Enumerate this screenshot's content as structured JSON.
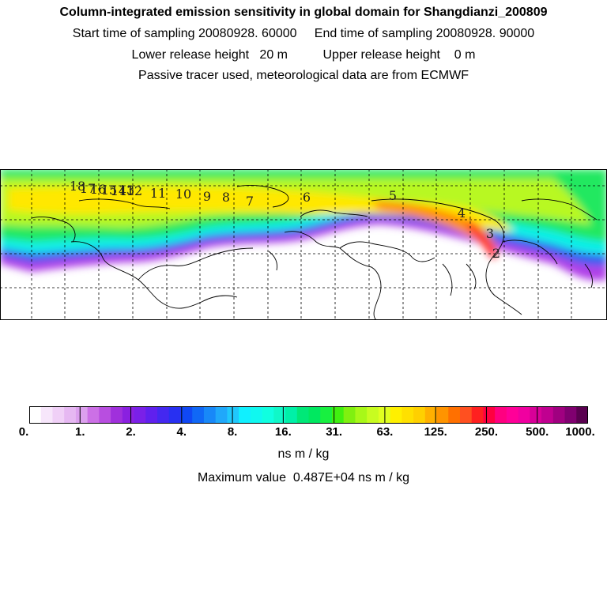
{
  "header": {
    "title": "Column-integrated emission sensitivity in global domain for Shangdianzi_200809",
    "line1": "Start time of sampling 20080928. 60000     End time of sampling 20080928. 90000",
    "line2": "Lower release height   20 m          Upper release height    0 m",
    "line3": "Passive tracer used, meteorological data are from ECMWF"
  },
  "map": {
    "day_labels": [
      "18",
      "17",
      "16",
      "15",
      "14",
      "13",
      "12",
      "11",
      "10",
      "9",
      "8",
      "7",
      "6",
      "5",
      "4",
      "3",
      "2"
    ]
  },
  "colorbar": {
    "tick_labels": [
      "0.",
      "1.",
      "2.",
      "4.",
      "8.",
      "16.",
      "31.",
      "63.",
      "125.",
      "250.",
      "500.",
      "1000."
    ],
    "units": "ns m / kg",
    "max_value_text": "Maximum value  0.487E+04 ns m / kg",
    "colors": [
      "#ffffff",
      "#f7e6fb",
      "#f0d0f7",
      "#e6b8f2",
      "#dca0ee",
      "#cc70e6",
      "#b84ee0",
      "#a030dc",
      "#8a20e0",
      "#7a20e8",
      "#6020ee",
      "#4428f0",
      "#2830f2",
      "#1048f4",
      "#1068f6",
      "#1888f8",
      "#20a8fa",
      "#20c8fc",
      "#10f0ff",
      "#10f8f0",
      "#10ffe0",
      "#10f8c8",
      "#00f0a8",
      "#00e878",
      "#00e860",
      "#18f040",
      "#40f010",
      "#80f010",
      "#a8f818",
      "#c8fc20",
      "#e0ff20",
      "#fff000",
      "#ffe000",
      "#ffd000",
      "#ffb000",
      "#ff9400",
      "#ff7000",
      "#ff5020",
      "#ff2020",
      "#ff0040",
      "#ff0080",
      "#ff0098",
      "#f000a0",
      "#d80098",
      "#c00090",
      "#a00080",
      "#800070",
      "#5a0050"
    ]
  }
}
